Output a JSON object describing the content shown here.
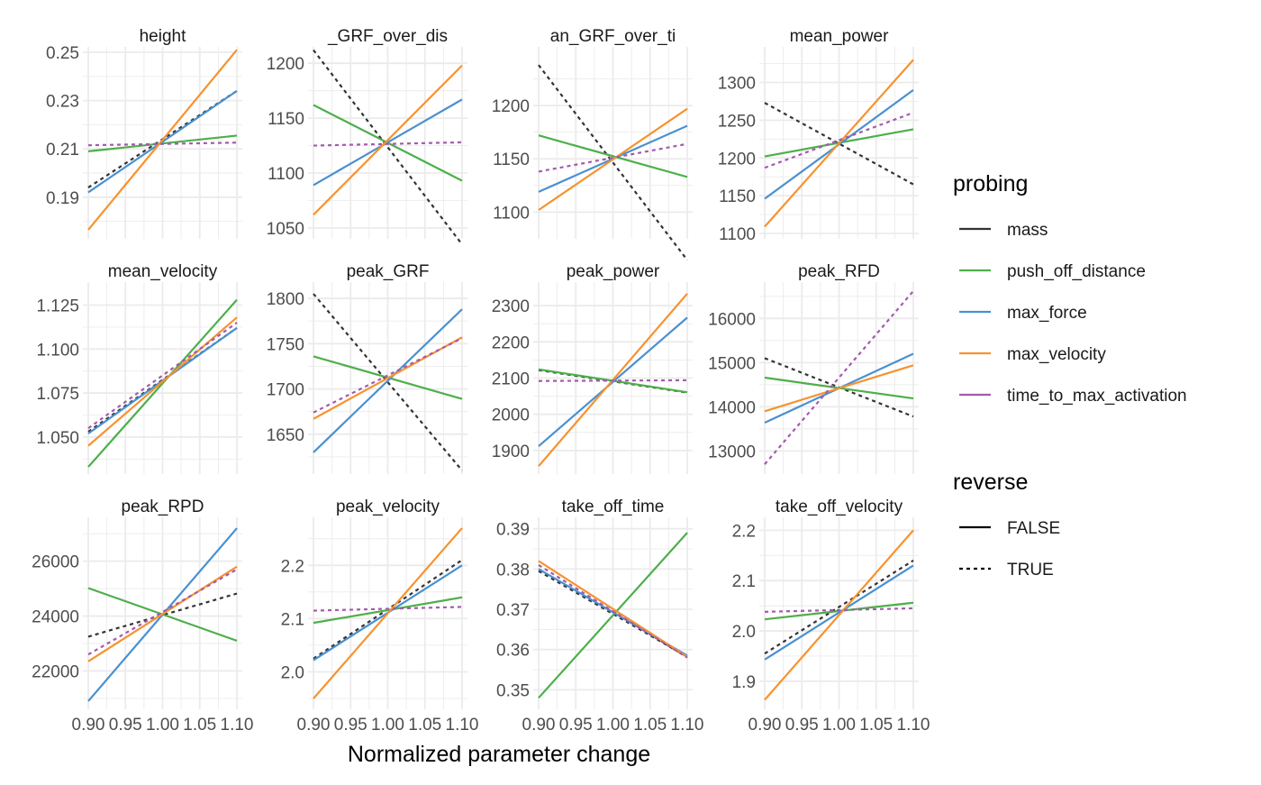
{
  "xlabel": "Normalized parameter change",
  "x_ticks": [
    "0.90",
    "0.95",
    "1.00",
    "1.05",
    "1.10"
  ],
  "colors": {
    "mass": "#333333",
    "push_off_distance": "#4daf4a",
    "max_force": "#4a90d0",
    "max_velocity": "#f7922e",
    "time_to_max_activation": "#a45aad",
    "grid": "#ebebeb",
    "text": "#4d4d4d"
  },
  "legend": {
    "probing_title": "probing",
    "probing_items": [
      "mass",
      "push_off_distance",
      "max_force",
      "max_velocity",
      "time_to_max_activation"
    ],
    "reverse_title": "reverse",
    "reverse_items": [
      "FALSE",
      "TRUE"
    ]
  },
  "chart_data": {
    "type": "line",
    "x": [
      0.9,
      1.1
    ],
    "xlim": [
      0.9,
      1.1
    ],
    "panels": [
      {
        "title": "height",
        "ylim": [
          0.175,
          0.25
        ],
        "y_ticks": [
          0.19,
          0.21,
          0.23,
          0.25
        ],
        "y_tick_labels": [
          "0.19",
          "0.21",
          "0.23",
          "0.25"
        ],
        "series": [
          {
            "name": "mass",
            "reverse": true,
            "values": [
              0.194,
              0.234
            ]
          },
          {
            "name": "push_off_distance",
            "reverse": false,
            "values": [
              0.209,
              0.2155
            ]
          },
          {
            "name": "max_force",
            "reverse": false,
            "values": [
              0.192,
              0.234
            ]
          },
          {
            "name": "max_velocity",
            "reverse": false,
            "values": [
              0.1765,
              0.251
            ]
          },
          {
            "name": "time_to_max_activation",
            "reverse": true,
            "values": [
              0.2115,
              0.2126
            ]
          }
        ]
      },
      {
        "title": "_GRF_over_dis",
        "ylim": [
          1045,
          1210
        ],
        "y_ticks": [
          1050,
          1100,
          1150,
          1200
        ],
        "y_tick_labels": [
          "1050",
          "1100",
          "1150",
          "1200"
        ],
        "series": [
          {
            "name": "mass",
            "reverse": true,
            "values": [
              1212,
              1035
            ]
          },
          {
            "name": "push_off_distance",
            "reverse": false,
            "values": [
              1162,
              1093
            ]
          },
          {
            "name": "max_force",
            "reverse": false,
            "values": [
              1089,
              1167
            ]
          },
          {
            "name": "max_velocity",
            "reverse": false,
            "values": [
              1062,
              1198
            ]
          },
          {
            "name": "time_to_max_activation",
            "reverse": true,
            "values": [
              1125,
              1128
            ]
          }
        ]
      },
      {
        "title": "an_GRF_over_ti",
        "ylim": [
          1080,
          1250
        ],
        "y_ticks": [
          1100,
          1150,
          1200
        ],
        "y_tick_labels": [
          "1100",
          "1150",
          "1200"
        ],
        "series": [
          {
            "name": "mass",
            "reverse": true,
            "values": [
              1238,
              1055
            ]
          },
          {
            "name": "push_off_distance",
            "reverse": false,
            "values": [
              1172,
              1133
            ]
          },
          {
            "name": "max_force",
            "reverse": false,
            "values": [
              1119,
              1181
            ]
          },
          {
            "name": "max_velocity",
            "reverse": false,
            "values": [
              1102,
              1197
            ]
          },
          {
            "name": "time_to_max_activation",
            "reverse": true,
            "values": [
              1138,
              1164
            ]
          }
        ]
      },
      {
        "title": "mean_power",
        "ylim": [
          1100,
          1340
        ],
        "y_ticks": [
          1100,
          1150,
          1200,
          1250,
          1300
        ],
        "y_tick_labels": [
          "1100",
          "1150",
          "1200",
          "1250",
          "1300"
        ],
        "series": [
          {
            "name": "mass",
            "reverse": true,
            "values": [
              1273,
              1165
            ]
          },
          {
            "name": "push_off_distance",
            "reverse": false,
            "values": [
              1202,
              1238
            ]
          },
          {
            "name": "max_force",
            "reverse": false,
            "values": [
              1146,
              1290
            ]
          },
          {
            "name": "max_velocity",
            "reverse": false,
            "values": [
              1109,
              1330
            ]
          },
          {
            "name": "time_to_max_activation",
            "reverse": true,
            "values": [
              1187,
              1260
            ]
          }
        ]
      },
      {
        "title": "mean_velocity",
        "ylim": [
          1.032,
          1.135
        ],
        "y_ticks": [
          1.05,
          1.075,
          1.1,
          1.125
        ],
        "y_tick_labels": [
          "1.050",
          "1.075",
          "1.100",
          "1.125"
        ],
        "series": [
          {
            "name": "mass",
            "reverse": true,
            "values": [
              1.053,
              1.112
            ]
          },
          {
            "name": "push_off_distance",
            "reverse": false,
            "values": [
              1.033,
              1.128
            ]
          },
          {
            "name": "max_force",
            "reverse": false,
            "values": [
              1.052,
              1.112
            ]
          },
          {
            "name": "max_velocity",
            "reverse": false,
            "values": [
              1.045,
              1.118
            ]
          },
          {
            "name": "time_to_max_activation",
            "reverse": true,
            "values": [
              1.055,
              1.115
            ]
          }
        ]
      },
      {
        "title": "peak_GRF",
        "ylim": [
          1612,
          1812
        ],
        "y_ticks": [
          1650,
          1700,
          1750,
          1800
        ],
        "y_tick_labels": [
          "1650",
          "1700",
          "1750",
          "1800"
        ],
        "series": [
          {
            "name": "mass",
            "reverse": true,
            "values": [
              1805,
              1610
            ]
          },
          {
            "name": "push_off_distance",
            "reverse": false,
            "values": [
              1736,
              1689
            ]
          },
          {
            "name": "max_force",
            "reverse": false,
            "values": [
              1630,
              1788
            ]
          },
          {
            "name": "max_velocity",
            "reverse": false,
            "values": [
              1667,
              1757
            ]
          },
          {
            "name": "time_to_max_activation",
            "reverse": true,
            "values": [
              1674,
              1756
            ]
          }
        ]
      },
      {
        "title": "peak_power",
        "ylim": [
          1850,
          2350
        ],
        "y_ticks": [
          1900,
          2000,
          2100,
          2200,
          2300
        ],
        "y_tick_labels": [
          "1900",
          "2000",
          "2100",
          "2200",
          "2300"
        ],
        "series": [
          {
            "name": "mass",
            "reverse": true,
            "values": [
              2122,
              2060
            ]
          },
          {
            "name": "push_off_distance",
            "reverse": false,
            "values": [
              2124,
              2061
            ]
          },
          {
            "name": "max_force",
            "reverse": false,
            "values": [
              1912,
              2267
            ]
          },
          {
            "name": "max_velocity",
            "reverse": false,
            "values": [
              1857,
              2333
            ]
          },
          {
            "name": "time_to_max_activation",
            "reverse": true,
            "values": [
              2092,
              2094
            ]
          }
        ]
      },
      {
        "title": "peak_RFD",
        "ylim": [
          12600,
          16700
        ],
        "y_ticks": [
          13000,
          14000,
          15000,
          16000
        ],
        "y_tick_labels": [
          "13000",
          "14000",
          "15000",
          "16000"
        ],
        "series": [
          {
            "name": "mass",
            "reverse": true,
            "values": [
              15100,
              13780
            ]
          },
          {
            "name": "push_off_distance",
            "reverse": false,
            "values": [
              14660,
              14190
            ]
          },
          {
            "name": "max_force",
            "reverse": false,
            "values": [
              13640,
              15200
            ]
          },
          {
            "name": "max_velocity",
            "reverse": false,
            "values": [
              13900,
              14940
            ]
          },
          {
            "name": "time_to_max_activation",
            "reverse": true,
            "values": [
              12700,
              16620
            ]
          }
        ]
      },
      {
        "title": "peak_RPD",
        "ylim": [
          20800,
          27400
        ],
        "y_ticks": [
          22000,
          24000,
          26000
        ],
        "y_tick_labels": [
          "22000",
          "24000",
          "26000"
        ],
        "series": [
          {
            "name": "mass",
            "reverse": true,
            "values": [
              23250,
              24820
            ]
          },
          {
            "name": "push_off_distance",
            "reverse": false,
            "values": [
              25020,
              23100
            ]
          },
          {
            "name": "max_force",
            "reverse": false,
            "values": [
              20900,
              27200
            ]
          },
          {
            "name": "max_velocity",
            "reverse": false,
            "values": [
              22350,
              25800
            ]
          },
          {
            "name": "time_to_max_activation",
            "reverse": true,
            "values": [
              22600,
              25700
            ]
          }
        ]
      },
      {
        "title": "peak_velocity",
        "ylim": [
          1.94,
          2.28
        ],
        "y_ticks": [
          2.0,
          2.1,
          2.2
        ],
        "y_tick_labels": [
          "2.0",
          "2.1",
          "2.2"
        ],
        "series": [
          {
            "name": "mass",
            "reverse": true,
            "values": [
              2.025,
              2.21
            ]
          },
          {
            "name": "push_off_distance",
            "reverse": false,
            "values": [
              2.092,
              2.14
            ]
          },
          {
            "name": "max_force",
            "reverse": false,
            "values": [
              2.022,
              2.2
            ]
          },
          {
            "name": "max_velocity",
            "reverse": false,
            "values": [
              1.95,
              2.27
            ]
          },
          {
            "name": "time_to_max_activation",
            "reverse": true,
            "values": [
              2.115,
              2.122
            ]
          }
        ]
      },
      {
        "title": "take_off_time",
        "ylim": [
          0.3465,
          0.3915
        ],
        "y_ticks": [
          0.35,
          0.36,
          0.37,
          0.38,
          0.39
        ],
        "y_tick_labels": [
          "0.35",
          "0.36",
          "0.37",
          "0.38",
          "0.39"
        ],
        "series": [
          {
            "name": "mass",
            "reverse": true,
            "values": [
              0.3795,
              0.3582
            ]
          },
          {
            "name": "push_off_distance",
            "reverse": false,
            "values": [
              0.348,
              0.389
            ]
          },
          {
            "name": "max_force",
            "reverse": false,
            "values": [
              0.38,
              0.3585
            ]
          },
          {
            "name": "max_velocity",
            "reverse": false,
            "values": [
              0.382,
              0.3582
            ]
          },
          {
            "name": "time_to_max_activation",
            "reverse": true,
            "values": [
              0.381,
              0.358
            ]
          }
        ]
      },
      {
        "title": "take_off_velocity",
        "ylim": [
          1.855,
          2.215
        ],
        "y_ticks": [
          1.9,
          2.0,
          2.1,
          2.2
        ],
        "y_tick_labels": [
          "1.9",
          "2.0",
          "2.1",
          "2.2"
        ],
        "series": [
          {
            "name": "mass",
            "reverse": true,
            "values": [
              1.955,
              2.14
            ]
          },
          {
            "name": "push_off_distance",
            "reverse": false,
            "values": [
              2.023,
              2.056
            ]
          },
          {
            "name": "max_force",
            "reverse": false,
            "values": [
              1.943,
              2.13
            ]
          },
          {
            "name": "max_velocity",
            "reverse": false,
            "values": [
              1.863,
              2.2
            ]
          },
          {
            "name": "time_to_max_activation",
            "reverse": true,
            "values": [
              2.038,
              2.045
            ]
          }
        ]
      }
    ]
  }
}
